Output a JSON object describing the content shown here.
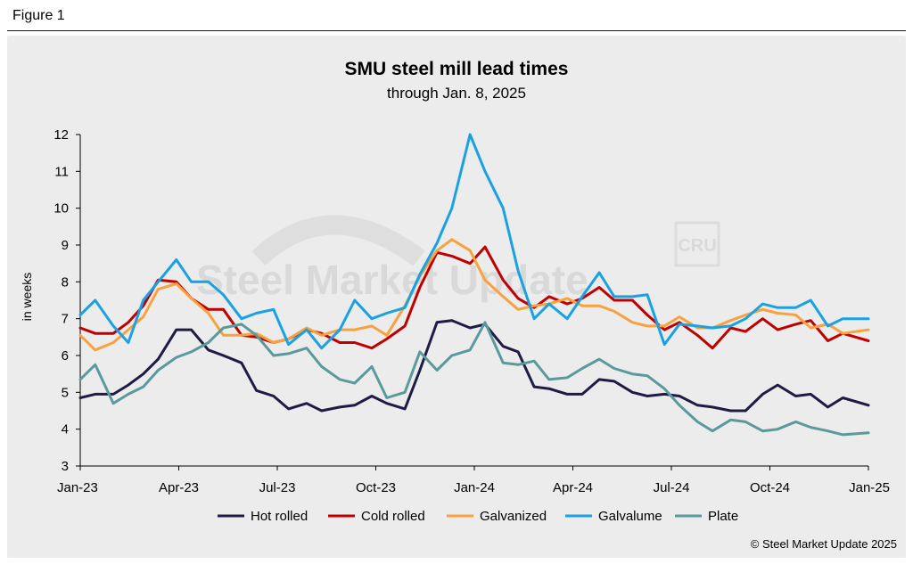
{
  "figure_label": "Figure 1",
  "copyright": "© Steel Market Update 2025",
  "watermark": {
    "brand": "Steel Market Update",
    "logo": "CRU"
  },
  "chart_data": {
    "type": "line",
    "title": "SMU steel mill lead times",
    "subtitle": "through Jan. 8, 2025",
    "xlabel": "",
    "ylabel": "in weeks",
    "ylim": [
      3,
      12
    ],
    "yticks": [
      3,
      4,
      5,
      6,
      7,
      8,
      9,
      10,
      11,
      12
    ],
    "x_tick_labels": [
      "Jan-23",
      "Apr-23",
      "Jul-23",
      "Oct-23",
      "Jan-24",
      "Apr-24",
      "Jul-24",
      "Oct-24",
      "Jan-25"
    ],
    "x_range": [
      "2023-01-01",
      "2025-01-08"
    ],
    "grid": false,
    "legend_position": "bottom",
    "series": [
      {
        "name": "Hot rolled",
        "color": "#1e1b44",
        "x": [
          "2023-01-01",
          "2023-01-15",
          "2023-02-01",
          "2023-02-15",
          "2023-03-01",
          "2023-03-15",
          "2023-04-01",
          "2023-04-15",
          "2023-05-01",
          "2023-05-15",
          "2023-06-01",
          "2023-06-15",
          "2023-07-01",
          "2023-07-15",
          "2023-08-01",
          "2023-08-15",
          "2023-09-01",
          "2023-09-15",
          "2023-10-01",
          "2023-10-15",
          "2023-11-01",
          "2023-11-15",
          "2023-12-01",
          "2023-12-15",
          "2024-01-01",
          "2024-01-15",
          "2024-02-01",
          "2024-02-15",
          "2024-03-01",
          "2024-03-15",
          "2024-04-01",
          "2024-04-15",
          "2024-05-01",
          "2024-05-15",
          "2024-06-01",
          "2024-06-15",
          "2024-07-01",
          "2024-07-15",
          "2024-08-01",
          "2024-08-15",
          "2024-09-01",
          "2024-09-15",
          "2024-10-01",
          "2024-10-15",
          "2024-11-01",
          "2024-11-15",
          "2024-12-01",
          "2024-12-15",
          "2025-01-08"
        ],
        "values": [
          4.85,
          4.95,
          4.95,
          5.2,
          5.5,
          5.9,
          6.7,
          6.7,
          6.15,
          6.0,
          5.8,
          5.05,
          4.9,
          4.55,
          4.7,
          4.5,
          4.6,
          4.65,
          4.9,
          4.7,
          4.55,
          5.6,
          6.9,
          6.95,
          6.75,
          6.85,
          6.25,
          6.1,
          5.15,
          5.1,
          4.95,
          4.95,
          5.35,
          5.3,
          5.0,
          4.9,
          4.95,
          4.9,
          4.65,
          4.6,
          4.5,
          4.5,
          4.95,
          5.2,
          4.9,
          4.95,
          4.6,
          4.85,
          4.65
        ]
      },
      {
        "name": "Cold rolled",
        "color": "#c00000",
        "x": [
          "2023-01-01",
          "2023-01-15",
          "2023-02-01",
          "2023-02-15",
          "2023-03-01",
          "2023-03-15",
          "2023-04-01",
          "2023-04-15",
          "2023-05-01",
          "2023-05-15",
          "2023-06-01",
          "2023-06-15",
          "2023-07-01",
          "2023-07-15",
          "2023-08-01",
          "2023-08-15",
          "2023-09-01",
          "2023-09-15",
          "2023-10-01",
          "2023-10-15",
          "2023-11-01",
          "2023-11-15",
          "2023-12-01",
          "2023-12-15",
          "2024-01-01",
          "2024-01-15",
          "2024-02-01",
          "2024-02-15",
          "2024-03-01",
          "2024-03-15",
          "2024-04-01",
          "2024-04-15",
          "2024-05-01",
          "2024-05-15",
          "2024-06-01",
          "2024-06-15",
          "2024-07-01",
          "2024-07-15",
          "2024-08-01",
          "2024-08-15",
          "2024-09-01",
          "2024-09-15",
          "2024-10-01",
          "2024-10-15",
          "2024-11-01",
          "2024-11-15",
          "2024-12-01",
          "2024-12-15",
          "2025-01-08"
        ],
        "values": [
          6.75,
          6.6,
          6.6,
          6.9,
          7.35,
          8.05,
          8.0,
          7.55,
          7.25,
          7.25,
          6.55,
          6.5,
          6.35,
          6.45,
          6.7,
          6.6,
          6.35,
          6.35,
          6.2,
          6.45,
          6.8,
          7.85,
          8.8,
          8.7,
          8.5,
          8.95,
          8.05,
          7.55,
          7.3,
          7.6,
          7.4,
          7.55,
          7.85,
          7.5,
          7.5,
          7.1,
          6.7,
          6.9,
          6.55,
          6.2,
          6.75,
          6.65,
          7.0,
          6.7,
          6.85,
          6.95,
          6.4,
          6.6,
          6.4
        ]
      },
      {
        "name": "Galvanized",
        "color": "#f7a23e",
        "x": [
          "2023-01-01",
          "2023-01-15",
          "2023-02-01",
          "2023-02-15",
          "2023-03-01",
          "2023-03-15",
          "2023-04-01",
          "2023-04-15",
          "2023-05-01",
          "2023-05-15",
          "2023-06-01",
          "2023-06-15",
          "2023-07-01",
          "2023-07-15",
          "2023-08-01",
          "2023-08-15",
          "2023-09-01",
          "2023-09-15",
          "2023-10-01",
          "2023-10-15",
          "2023-11-01",
          "2023-11-15",
          "2023-12-01",
          "2023-12-15",
          "2024-01-01",
          "2024-01-15",
          "2024-02-01",
          "2024-02-15",
          "2024-03-01",
          "2024-03-15",
          "2024-04-01",
          "2024-04-15",
          "2024-05-01",
          "2024-05-15",
          "2024-06-01",
          "2024-06-15",
          "2024-07-01",
          "2024-07-15",
          "2024-08-01",
          "2024-08-15",
          "2024-09-01",
          "2024-09-15",
          "2024-10-01",
          "2024-10-15",
          "2024-11-01",
          "2024-11-15",
          "2024-12-01",
          "2024-12-15",
          "2025-01-08"
        ],
        "values": [
          6.55,
          6.15,
          6.35,
          6.7,
          7.05,
          7.8,
          7.95,
          7.55,
          7.15,
          6.55,
          6.55,
          6.6,
          6.35,
          6.45,
          6.75,
          6.55,
          6.7,
          6.7,
          6.8,
          6.55,
          7.35,
          8.15,
          8.85,
          9.15,
          8.85,
          8.05,
          7.6,
          7.25,
          7.35,
          7.4,
          7.55,
          7.35,
          7.35,
          7.2,
          6.9,
          6.8,
          6.8,
          7.05,
          6.75,
          6.75,
          6.95,
          7.1,
          7.25,
          7.15,
          7.1,
          6.75,
          6.85,
          6.6,
          6.7
        ]
      },
      {
        "name": "Galvalume",
        "color": "#1ba1e2",
        "x": [
          "2023-01-01",
          "2023-01-15",
          "2023-02-01",
          "2023-02-15",
          "2023-03-01",
          "2023-03-15",
          "2023-04-01",
          "2023-04-15",
          "2023-05-01",
          "2023-05-15",
          "2023-06-01",
          "2023-06-15",
          "2023-07-01",
          "2023-07-15",
          "2023-08-01",
          "2023-08-15",
          "2023-09-01",
          "2023-09-15",
          "2023-10-01",
          "2023-10-15",
          "2023-11-01",
          "2023-11-15",
          "2023-12-01",
          "2023-12-15",
          "2024-01-01",
          "2024-01-15",
          "2024-02-01",
          "2024-02-15",
          "2024-03-01",
          "2024-03-15",
          "2024-04-01",
          "2024-04-15",
          "2024-05-01",
          "2024-05-15",
          "2024-06-01",
          "2024-06-15",
          "2024-07-01",
          "2024-07-15",
          "2024-08-01",
          "2024-08-15",
          "2024-09-01",
          "2024-09-15",
          "2024-10-01",
          "2024-10-15",
          "2024-11-01",
          "2024-11-15",
          "2024-12-01",
          "2024-12-15",
          "2025-01-08"
        ],
        "values": [
          7.1,
          7.5,
          6.8,
          6.35,
          7.5,
          8.0,
          8.6,
          8.0,
          8.0,
          7.65,
          7.0,
          7.15,
          7.25,
          6.3,
          6.7,
          6.2,
          6.7,
          7.5,
          7.0,
          7.15,
          7.3,
          8.2,
          9.05,
          10.0,
          12.0,
          11.0,
          10.0,
          8.3,
          7.0,
          7.4,
          7.0,
          7.6,
          8.25,
          7.6,
          7.6,
          7.65,
          6.3,
          6.85,
          6.8,
          6.75,
          6.8,
          7.0,
          7.4,
          7.3,
          7.3,
          7.5,
          6.8,
          7.0,
          7.0
        ]
      },
      {
        "name": "Plate",
        "color": "#5a9a9c",
        "x": [
          "2023-01-01",
          "2023-01-15",
          "2023-02-01",
          "2023-02-15",
          "2023-03-01",
          "2023-03-15",
          "2023-04-01",
          "2023-04-15",
          "2023-05-01",
          "2023-05-15",
          "2023-06-01",
          "2023-06-15",
          "2023-07-01",
          "2023-07-15",
          "2023-08-01",
          "2023-08-15",
          "2023-09-01",
          "2023-09-15",
          "2023-10-01",
          "2023-10-15",
          "2023-11-01",
          "2023-11-15",
          "2023-12-01",
          "2023-12-15",
          "2024-01-01",
          "2024-01-15",
          "2024-02-01",
          "2024-02-15",
          "2024-03-01",
          "2024-03-15",
          "2024-04-01",
          "2024-04-15",
          "2024-05-01",
          "2024-05-15",
          "2024-06-01",
          "2024-06-15",
          "2024-07-01",
          "2024-07-15",
          "2024-08-01",
          "2024-08-15",
          "2024-09-01",
          "2024-09-15",
          "2024-10-01",
          "2024-10-15",
          "2024-11-01",
          "2024-11-15",
          "2024-12-01",
          "2024-12-15",
          "2025-01-08"
        ],
        "values": [
          5.35,
          5.75,
          4.7,
          4.95,
          5.15,
          5.6,
          5.95,
          6.1,
          6.35,
          6.75,
          6.85,
          6.55,
          6.0,
          6.05,
          6.2,
          5.7,
          5.35,
          5.25,
          5.7,
          4.85,
          5.0,
          6.1,
          5.6,
          6.0,
          6.15,
          6.9,
          5.8,
          5.75,
          5.85,
          5.35,
          5.4,
          5.65,
          5.9,
          5.65,
          5.5,
          5.45,
          5.1,
          4.65,
          4.2,
          3.95,
          4.25,
          4.2,
          3.95,
          4.0,
          4.2,
          4.05,
          3.95,
          3.85,
          3.9
        ]
      }
    ]
  }
}
